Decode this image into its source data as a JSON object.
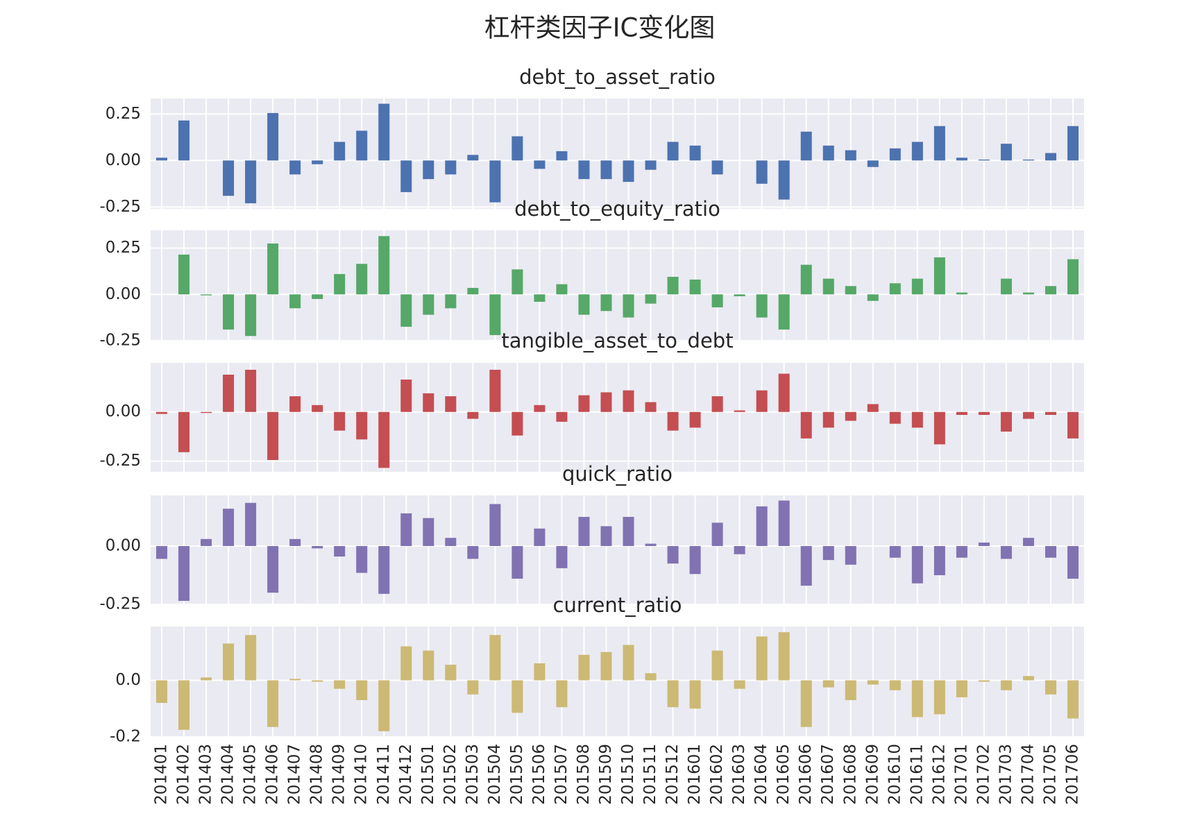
{
  "title": "杠杆类因子IC变化图",
  "chart_data": [
    {
      "type": "bar",
      "title": "debt_to_asset_ratio",
      "color": "#4c72b0",
      "grid": true,
      "ylim": [
        -0.26,
        0.333
      ],
      "yticks": [
        -0.25,
        {
          "value": 0,
          "label": "0.00"
        },
        0.25
      ],
      "values": [
        0.015,
        0.215,
        0,
        -0.19,
        -0.23,
        0.255,
        -0.075,
        -0.02,
        0.1,
        0.16,
        0.305,
        -0.17,
        -0.1,
        -0.075,
        0.03,
        -0.225,
        0.13,
        -0.045,
        0.05,
        -0.1,
        -0.1,
        -0.115,
        -0.05,
        0.1,
        0.08,
        -0.075,
        0,
        -0.125,
        -0.21,
        0.155,
        0.08,
        0.055,
        -0.035,
        0.065,
        0.1,
        0.185,
        0.015,
        0.005,
        0.09,
        0.005,
        0.04,
        0.185
      ]
    },
    {
      "type": "bar",
      "title": "debt_to_equity_ratio",
      "color": "#55a868",
      "grid": true,
      "ylim": [
        -0.254,
        0.346
      ],
      "yticks": [
        -0.25,
        {
          "value": 0,
          "label": "0.00"
        },
        0.25
      ],
      "values": [
        0,
        0.215,
        -0.005,
        -0.19,
        -0.225,
        0.275,
        -0.075,
        -0.025,
        0.11,
        0.165,
        0.315,
        -0.175,
        -0.11,
        -0.075,
        0.035,
        -0.22,
        0.135,
        -0.04,
        0.055,
        -0.11,
        -0.09,
        -0.125,
        -0.05,
        0.095,
        0.08,
        -0.07,
        -0.01,
        -0.125,
        -0.19,
        0.16,
        0.085,
        0.045,
        -0.035,
        0.06,
        0.085,
        0.2,
        0.01,
        0,
        0.085,
        0.01,
        0.045,
        0.19
      ]
    },
    {
      "type": "bar",
      "title": "tangible_asset_to_debt",
      "color": "#c44e52",
      "grid": true,
      "ylim": [
        -0.305,
        0.25
      ],
      "yticks": [
        -0.25,
        {
          "value": 0,
          "label": "0.00"
        }
      ],
      "values": [
        -0.01,
        -0.205,
        -0.005,
        0.19,
        0.215,
        -0.245,
        0.08,
        0.035,
        -0.095,
        -0.14,
        -0.285,
        0.165,
        0.095,
        0.08,
        -0.035,
        0.215,
        -0.12,
        0.035,
        -0.05,
        0.085,
        0.1,
        0.11,
        0.05,
        -0.095,
        -0.08,
        0.08,
        0.008,
        0.11,
        0.195,
        -0.135,
        -0.08,
        -0.045,
        0.04,
        -0.06,
        -0.08,
        -0.165,
        -0.015,
        -0.015,
        -0.1,
        -0.035,
        -0.015,
        -0.135
      ]
    },
    {
      "type": "bar",
      "title": "quick_ratio",
      "color": "#8172b2",
      "grid": true,
      "ylim": [
        -0.25,
        0.217
      ],
      "yticks": [
        -0.25,
        {
          "value": 0,
          "label": "0.00"
        }
      ],
      "values": [
        -0.055,
        -0.235,
        0.03,
        0.16,
        0.185,
        -0.2,
        0.03,
        -0.01,
        -0.045,
        -0.115,
        -0.205,
        0.14,
        0.12,
        0.035,
        -0.055,
        0.18,
        -0.14,
        0.075,
        -0.095,
        0.125,
        0.085,
        0.125,
        0.01,
        -0.075,
        -0.12,
        0.1,
        -0.035,
        0.17,
        0.195,
        -0.17,
        -0.06,
        -0.08,
        0,
        -0.05,
        -0.16,
        -0.125,
        -0.05,
        0.015,
        -0.055,
        0.035,
        -0.05,
        -0.14
      ]
    },
    {
      "type": "bar",
      "title": "current_ratio",
      "color": "#ccb974",
      "grid": true,
      "ylim": [
        -0.2,
        0.19
      ],
      "yticks": [
        -0.2,
        {
          "value": 0,
          "label": "0.0"
        }
      ],
      "categories": [
        "201401",
        "201402",
        "201403",
        "201404",
        "201405",
        "201406",
        "201407",
        "201408",
        "201409",
        "201410",
        "201411",
        "201412",
        "201501",
        "201502",
        "201503",
        "201504",
        "201505",
        "201506",
        "201507",
        "201508",
        "201509",
        "201510",
        "201511",
        "201512",
        "201601",
        "201602",
        "201603",
        "201604",
        "201605",
        "201606",
        "201607",
        "201608",
        "201609",
        "201610",
        "201611",
        "201612",
        "201701",
        "201702",
        "201703",
        "201704",
        "201705",
        "201706"
      ],
      "values": [
        -0.08,
        -0.175,
        0.01,
        0.13,
        0.16,
        -0.165,
        0.005,
        -0.005,
        -0.03,
        -0.07,
        -0.18,
        0.12,
        0.105,
        0.055,
        -0.05,
        0.16,
        -0.115,
        0.06,
        -0.095,
        0.09,
        0.1,
        0.125,
        0.025,
        -0.095,
        -0.1,
        0.105,
        -0.03,
        0.155,
        0.17,
        -0.165,
        -0.025,
        -0.07,
        -0.015,
        -0.035,
        -0.13,
        -0.12,
        -0.06,
        -0.005,
        -0.035,
        0.015,
        -0.05,
        -0.135
      ]
    }
  ]
}
